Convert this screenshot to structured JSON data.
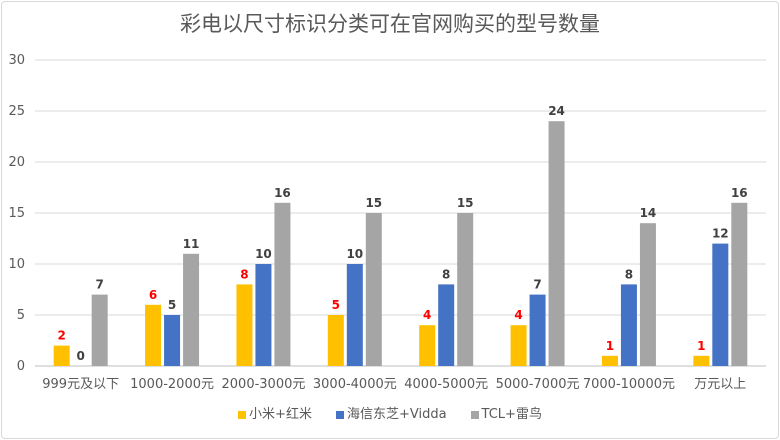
{
  "chart_data": {
    "type": "bar",
    "title": "彩电以尺寸标识分类可在官网购买的型号数量",
    "categories": [
      "999元及以下",
      "1000-2000元",
      "2000-3000元",
      "3000-4000元",
      "4000-5000元",
      "5000-7000元",
      "7000-10000元",
      "万元以上"
    ],
    "series": [
      {
        "name": "小米+红米",
        "color": "#FFC000",
        "label_color": "#FF0000",
        "values": [
          2,
          6,
          8,
          5,
          4,
          4,
          1,
          1
        ]
      },
      {
        "name": "海信东芝+Vidda",
        "color": "#4472C4",
        "label_color": "#404040",
        "values": [
          0,
          5,
          10,
          10,
          8,
          7,
          8,
          12
        ]
      },
      {
        "name": "TCL+雷鸟",
        "color": "#A5A5A5",
        "label_color": "#404040",
        "values": [
          7,
          11,
          16,
          15,
          15,
          24,
          14,
          16
        ]
      }
    ],
    "ylim": [
      0,
      30
    ],
    "yticks": [
      0,
      5,
      10,
      15,
      20,
      25,
      30
    ],
    "grid": true,
    "legend": "bottom"
  }
}
